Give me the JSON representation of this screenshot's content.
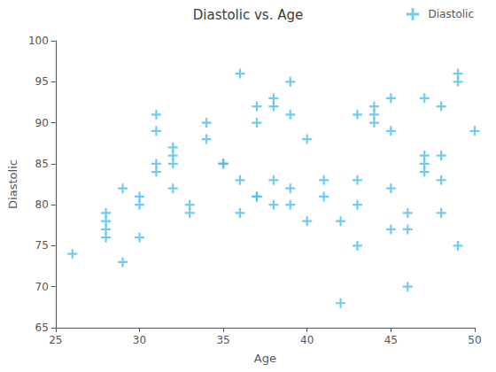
{
  "chart_data": {
    "type": "scatter",
    "title": "Diastolic vs. Age",
    "xlabel": "Age",
    "ylabel": "Diastolic",
    "xlim": [
      25,
      50
    ],
    "ylim": [
      65,
      100
    ],
    "xticks": [
      25,
      30,
      35,
      40,
      45,
      50
    ],
    "yticks": [
      65,
      70,
      75,
      80,
      85,
      90,
      95,
      100
    ],
    "grid": false,
    "legend": "upper right",
    "x": [
      26,
      28,
      28,
      28,
      28,
      29,
      29,
      30,
      30,
      30,
      31,
      31,
      31,
      31,
      32,
      32,
      32,
      32,
      33,
      33,
      34,
      34,
      35,
      35,
      35,
      36,
      36,
      36,
      37,
      37,
      37,
      37,
      38,
      38,
      38,
      38,
      39,
      39,
      39,
      39,
      40,
      40,
      41,
      41,
      42,
      42,
      43,
      43,
      43,
      43,
      44,
      44,
      44,
      45,
      45,
      45,
      45,
      46,
      46,
      46,
      47,
      47,
      47,
      47,
      48,
      48,
      48,
      48,
      49,
      49,
      49,
      50
    ],
    "series": [
      {
        "name": "Diastolic",
        "color": "#4DBEEE",
        "marker": "plus",
        "values": [
          74,
          79,
          78,
          77,
          76,
          82,
          73,
          81,
          80,
          76,
          91,
          89,
          85,
          84,
          87,
          86,
          85,
          82,
          80,
          79,
          90,
          88,
          85,
          85,
          85,
          96,
          83,
          79,
          92,
          90,
          81,
          81,
          93,
          92,
          83,
          80,
          95,
          91,
          82,
          80,
          88,
          78,
          83,
          81,
          68,
          78,
          91,
          83,
          80,
          75,
          92,
          91,
          90,
          93,
          89,
          82,
          77,
          70,
          79,
          77,
          93,
          86,
          85,
          84,
          92,
          86,
          83,
          79,
          96,
          95,
          75,
          89
        ]
      }
    ]
  }
}
